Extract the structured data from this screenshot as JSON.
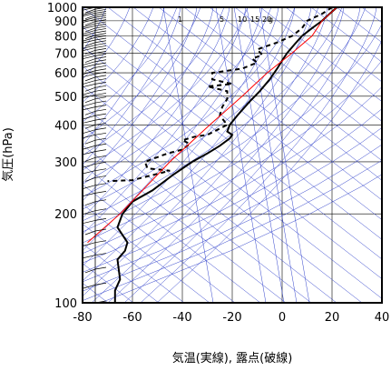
{
  "chart_data": {
    "type": "line",
    "title": "",
    "xlabel": "気温(実線), 露点(破線)",
    "ylabel": "気圧(hPa)",
    "xlim": [
      -80,
      40
    ],
    "ylim": [
      1000,
      100
    ],
    "yscale": "log",
    "grid": true,
    "x_ticks": [
      "-80",
      "-60",
      "-40",
      "-20",
      "0",
      "20",
      "40"
    ],
    "y_ticks": [
      "100",
      "200",
      "300",
      "400",
      "500",
      "600",
      "700",
      "800",
      "900",
      "1000"
    ],
    "x_tick_values": [
      -80,
      -60,
      -40,
      -20,
      0,
      20,
      40
    ],
    "y_tick_values": [
      100,
      200,
      300,
      400,
      500,
      600,
      700,
      800,
      900,
      1000
    ],
    "mixing_ratio_labels": [
      "1",
      "5",
      "10",
      "15",
      "20",
      "g"
    ],
    "mixing_ratio_values": [
      1,
      5,
      10,
      15,
      20
    ],
    "series": [
      {
        "style": "solid",
        "color": "#000000",
        "points": [
          [
            22,
            1000
          ],
          [
            19,
            950
          ],
          [
            16,
            900
          ],
          [
            12,
            850
          ],
          [
            8,
            800
          ],
          [
            5,
            750
          ],
          [
            2,
            700
          ],
          [
            0,
            660
          ],
          [
            -2,
            620
          ],
          [
            -5,
            570
          ],
          [
            -9,
            520
          ],
          [
            -13,
            480
          ],
          [
            -18,
            430
          ],
          [
            -21,
            400
          ],
          [
            -22,
            380
          ],
          [
            -20,
            370
          ],
          [
            -21,
            360
          ],
          [
            -25,
            340
          ],
          [
            -30,
            320
          ],
          [
            -36,
            300
          ],
          [
            -44,
            270
          ],
          [
            -52,
            240
          ],
          [
            -60,
            220
          ],
          [
            -64,
            200
          ],
          [
            -66,
            180
          ],
          [
            -62,
            160
          ],
          [
            -63,
            150
          ],
          [
            -66,
            140
          ],
          [
            -65,
            120
          ],
          [
            -67,
            110
          ],
          [
            -67,
            100
          ]
        ]
      },
      {
        "style": "dashed",
        "color": "#000000",
        "points": [
          [
            20,
            1000
          ],
          [
            16,
            950
          ],
          [
            10,
            900
          ],
          [
            8,
            850
          ],
          [
            4,
            800
          ],
          [
            -2,
            760
          ],
          [
            -10,
            720
          ],
          [
            -8,
            690
          ],
          [
            -12,
            670
          ],
          [
            -10,
            650
          ],
          [
            -12,
            640
          ],
          [
            -16,
            620
          ],
          [
            -28,
            600
          ],
          [
            -28,
            570
          ],
          [
            -20,
            550
          ],
          [
            -30,
            540
          ],
          [
            -22,
            520
          ],
          [
            -22,
            490
          ],
          [
            -24,
            460
          ],
          [
            -25,
            430
          ],
          [
            -22,
            400
          ],
          [
            -30,
            370
          ],
          [
            -35,
            365
          ],
          [
            -40,
            355
          ],
          [
            -37,
            345
          ],
          [
            -40,
            330
          ],
          [
            -46,
            320
          ],
          [
            -55,
            300
          ],
          [
            -54,
            285
          ],
          [
            -45,
            280
          ],
          [
            -60,
            260
          ],
          [
            -70,
            258
          ]
        ]
      },
      {
        "style": "solid",
        "color": "#ff0000",
        "points": [
          [
            22,
            1000
          ],
          [
            16,
            900
          ],
          [
            12,
            800
          ],
          [
            4,
            700
          ],
          [
            -6,
            600
          ],
          [
            -16,
            500
          ],
          [
            -29,
            400
          ],
          [
            -45,
            300
          ],
          [
            -65,
            200
          ],
          [
            -78,
            160
          ]
        ]
      }
    ],
    "wind_profile": "wind barbs along left edge from 1000 to 100 hPa"
  }
}
